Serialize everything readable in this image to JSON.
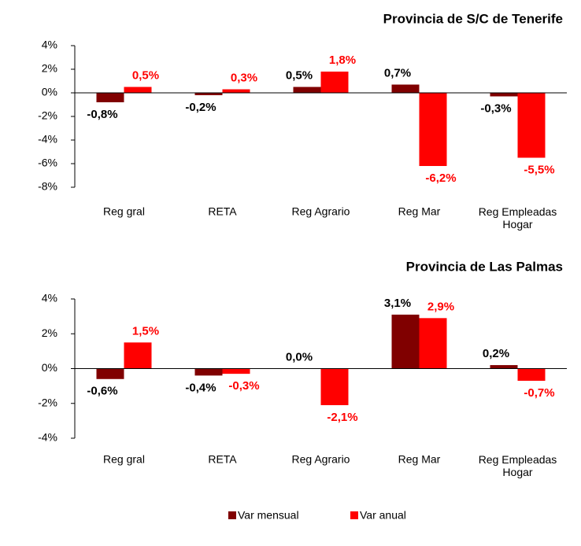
{
  "chart_data": [
    {
      "type": "bar",
      "title": "Provincia de S/C de Tenerife",
      "categories": [
        "Reg gral",
        "RETA",
        "Reg Agrario",
        "Reg Mar",
        "Reg Empleadas Hogar"
      ],
      "series": [
        {
          "name": "Var mensual",
          "color": "#800000",
          "values": [
            -0.8,
            -0.2,
            0.5,
            0.7,
            -0.3
          ],
          "value_labels": [
            "-0,8%",
            "-0,2%",
            "0,5%",
            "0,7%",
            "-0,3%"
          ]
        },
        {
          "name": "Var anual",
          "color": "#ff0000",
          "values": [
            0.5,
            0.3,
            1.8,
            -6.2,
            -5.5
          ],
          "value_labels": [
            "0,5%",
            "0,3%",
            "1,8%",
            "-6,2%",
            "-5,5%"
          ]
        }
      ],
      "ylim": [
        -8,
        4
      ],
      "yticks": [
        {
          "value": 4,
          "label": "4%"
        },
        {
          "value": 2,
          "label": "2%"
        },
        {
          "value": 0,
          "label": "0%"
        },
        {
          "value": -2,
          "label": "-2%"
        },
        {
          "value": -4,
          "label": "-4%"
        },
        {
          "value": -6,
          "label": "-6%"
        },
        {
          "value": -8,
          "label": "-8%"
        }
      ]
    },
    {
      "type": "bar",
      "title": "Provincia de Las Palmas",
      "categories": [
        "Reg gral",
        "RETA",
        "Reg Agrario",
        "Reg Mar",
        "Reg Empleadas Hogar"
      ],
      "series": [
        {
          "color": "#800000",
          "values": [
            -0.6,
            -0.4,
            0.0,
            3.1,
            0.2
          ],
          "value_labels": [
            "-0,6%",
            "-0,4%",
            "0,0%",
            "3,1%",
            "0,2%"
          ]
        },
        {
          "color": "#ff0000",
          "values": [
            1.5,
            -0.3,
            -2.1,
            2.9,
            -0.7
          ],
          "value_labels": [
            "1,5%",
            "-0,3%",
            "-2,1%",
            "2,9%",
            "-0,7%"
          ]
        }
      ],
      "ylim": [
        -4,
        4
      ],
      "yticks": [
        {
          "value": 4,
          "label": "4%"
        },
        {
          "value": 2,
          "label": "2%"
        },
        {
          "value": 0,
          "label": "0%"
        },
        {
          "value": -2,
          "label": "-2%"
        },
        {
          "value": -4,
          "label": "-4%"
        }
      ]
    }
  ]
}
